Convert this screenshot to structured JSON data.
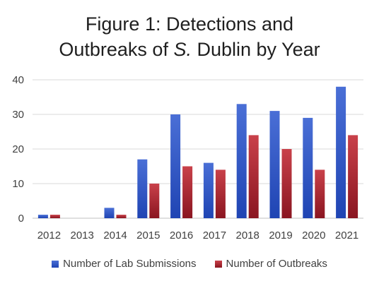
{
  "chart_data": {
    "type": "bar",
    "title_line1": "Figure 1: Detections and",
    "title_line2_pre": "Outbreaks of ",
    "title_line2_italic": "S.",
    "title_line2_post": " Dublin by Year",
    "categories": [
      "2012",
      "2013",
      "2014",
      "2015",
      "2016",
      "2017",
      "2018",
      "2019",
      "2020",
      "2021"
    ],
    "series": [
      {
        "name": "Number of Lab Submissions",
        "values": [
          1,
          0,
          3,
          17,
          30,
          16,
          33,
          31,
          29,
          38
        ],
        "color_top": "#4a6fd6",
        "color_bottom": "#1f44b3"
      },
      {
        "name": "Number of Outbreaks",
        "values": [
          1,
          0,
          1,
          10,
          15,
          14,
          24,
          20,
          14,
          24
        ],
        "color_top": "#c9414a",
        "color_bottom": "#8a1520"
      }
    ],
    "ylim": [
      0,
      40
    ],
    "yticks": [
      0,
      10,
      20,
      30,
      40
    ],
    "grid": true,
    "legend_position": "bottom"
  }
}
